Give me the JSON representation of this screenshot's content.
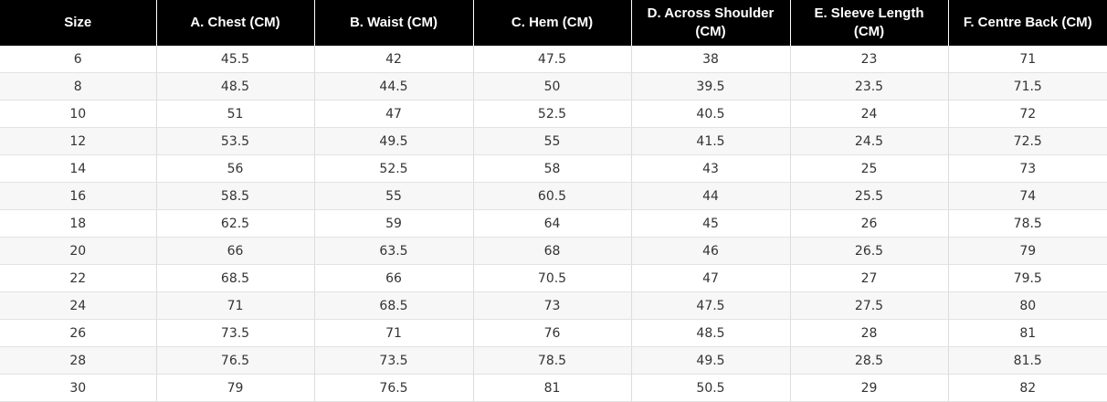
{
  "table": {
    "headers": [
      "Size",
      "A. Chest (CM)",
      "B. Waist (CM)",
      "C. Hem (CM)",
      "D. Across Shoulder (CM)",
      "E. Sleeve Length (CM)",
      "F. Centre Back (CM)"
    ],
    "rows": [
      [
        "6",
        "45.5",
        "42",
        "47.5",
        "38",
        "23",
        "71"
      ],
      [
        "8",
        "48.5",
        "44.5",
        "50",
        "39.5",
        "23.5",
        "71.5"
      ],
      [
        "10",
        "51",
        "47",
        "52.5",
        "40.5",
        "24",
        "72"
      ],
      [
        "12",
        "53.5",
        "49.5",
        "55",
        "41.5",
        "24.5",
        "72.5"
      ],
      [
        "14",
        "56",
        "52.5",
        "58",
        "43",
        "25",
        "73"
      ],
      [
        "16",
        "58.5",
        "55",
        "60.5",
        "44",
        "25.5",
        "74"
      ],
      [
        "18",
        "62.5",
        "59",
        "64",
        "45",
        "26",
        "78.5"
      ],
      [
        "20",
        "66",
        "63.5",
        "68",
        "46",
        "26.5",
        "79"
      ],
      [
        "22",
        "68.5",
        "66",
        "70.5",
        "47",
        "27",
        "79.5"
      ],
      [
        "24",
        "71",
        "68.5",
        "73",
        "47.5",
        "27.5",
        "80"
      ],
      [
        "26",
        "73.5",
        "71",
        "76",
        "48.5",
        "28",
        "81"
      ],
      [
        "28",
        "76.5",
        "73.5",
        "78.5",
        "49.5",
        "28.5",
        "81.5"
      ],
      [
        "30",
        "79",
        "76.5",
        "81",
        "50.5",
        "29",
        "82"
      ]
    ]
  },
  "colors": {
    "header_background": "#000000",
    "header_text": "#ffffff",
    "row_alt_background": "#f7f7f7",
    "cell_text": "#333333"
  }
}
